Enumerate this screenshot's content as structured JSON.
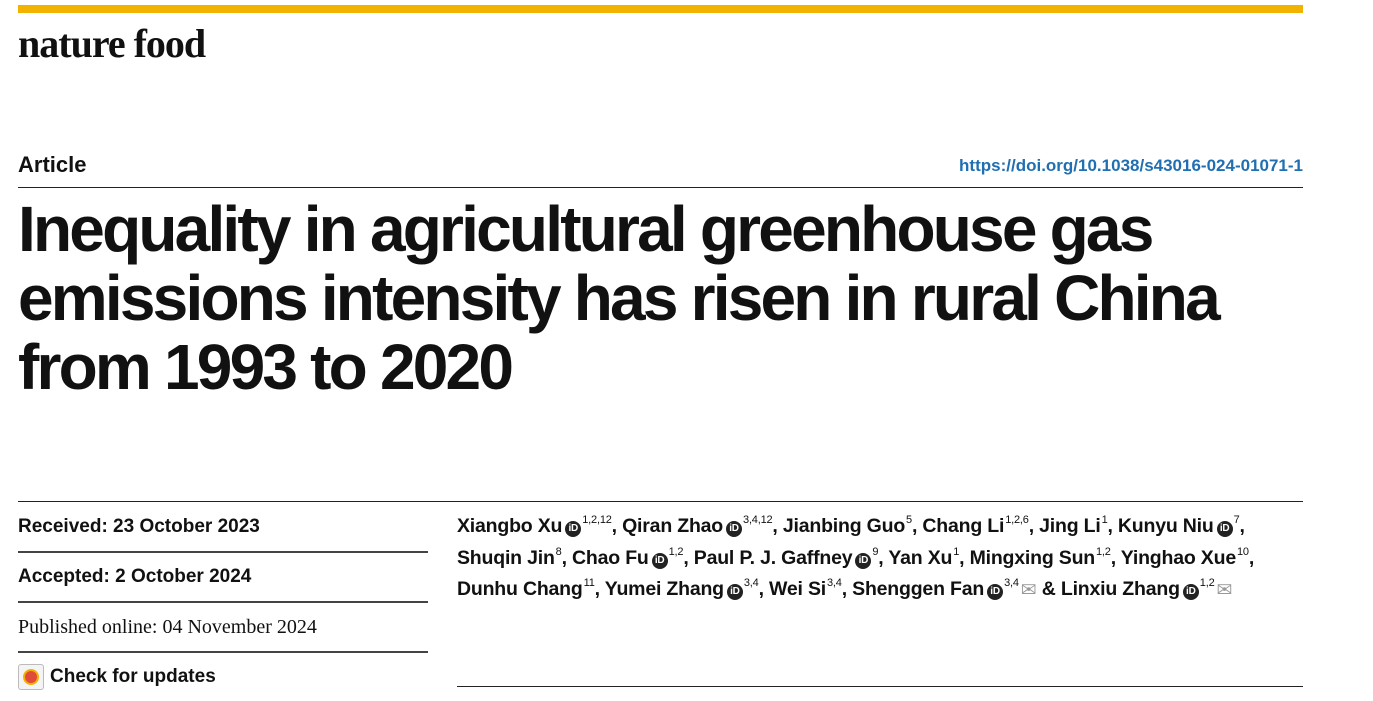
{
  "journal": "nature food",
  "article_type": "Article",
  "doi": "https://doi.org/10.1038/s43016-024-01071-1",
  "title": "Inequality in agricultural greenhouse gas emissions intensity has risen in rural China from 1993 to 2020",
  "dates": {
    "received": "Received: 23 October 2023",
    "accepted": "Accepted: 2 October 2024",
    "published": "Published online: 04 November 2024"
  },
  "check_updates": "Check for updates",
  "authors": [
    {
      "name": "Xiangbo Xu",
      "aff": "1,2,12",
      "orcid": true,
      "sep": ", "
    },
    {
      "name": "Qiran Zhao",
      "aff": "3,4,12",
      "orcid": true,
      "sep": ", "
    },
    {
      "name": "Jianbing Guo",
      "aff": "5",
      "orcid": false,
      "sep": ", "
    },
    {
      "name": "Chang Li",
      "aff": "1,2,6",
      "orcid": false,
      "sep": ", "
    },
    {
      "name": "Jing Li",
      "aff": "1",
      "orcid": false,
      "sep": ", "
    },
    {
      "name": "Kunyu Niu",
      "aff": "7",
      "orcid": true,
      "sep": ", "
    },
    {
      "name": "Shuqin Jin",
      "aff": "8",
      "orcid": false,
      "sep": ", "
    },
    {
      "name": "Chao Fu",
      "aff": "1,2",
      "orcid": true,
      "sep": ", "
    },
    {
      "name": "Paul P. J. Gaffney",
      "aff": "9",
      "orcid": true,
      "sep": ", "
    },
    {
      "name": "Yan Xu",
      "aff": "1",
      "orcid": false,
      "sep": ", "
    },
    {
      "name": "Mingxing Sun",
      "aff": "1,2",
      "orcid": false,
      "sep": ", "
    },
    {
      "name": "Yinghao Xue",
      "aff": "10",
      "orcid": false,
      "sep": ", "
    },
    {
      "name": "Dunhu Chang",
      "aff": "11",
      "orcid": false,
      "sep": ", "
    },
    {
      "name": "Yumei Zhang",
      "aff": "3,4",
      "orcid": true,
      "sep": ", "
    },
    {
      "name": "Wei Si",
      "aff": "3,4",
      "orcid": false,
      "sep": ", "
    },
    {
      "name": "Shenggen Fan",
      "aff": "3,4",
      "orcid": true,
      "mail": true,
      "sep": " & "
    },
    {
      "name": "Linxiu Zhang",
      "aff": "1,2",
      "orcid": true,
      "mail": true,
      "sep": ""
    }
  ],
  "colors": {
    "accent_bar": "#f2b200",
    "doi_link": "#1f6fb2"
  }
}
